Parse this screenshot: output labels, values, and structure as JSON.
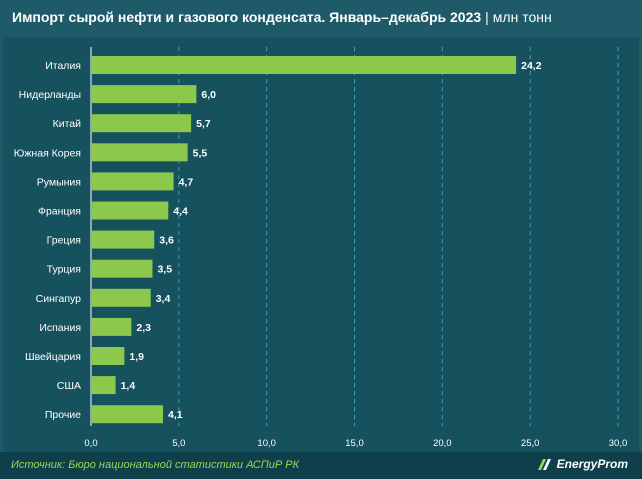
{
  "header": {
    "title_main": "Импорт сырой нефти и газового конденсата. Январь–декабрь 2023",
    "separator": "|",
    "unit": "млн тонн"
  },
  "footer": {
    "source": "Источник: Бюро национальной статистики АСПиР РК",
    "logo_text": "EnergyProm"
  },
  "colors": {
    "background": "#1f5a68",
    "panel": "#16515e",
    "bar": "#8cc84b",
    "grid": "#3fa3b3",
    "source_text": "#9bd65a"
  },
  "chart_data": {
    "type": "bar",
    "orientation": "horizontal",
    "categories": [
      "Италия",
      "Нидерланды",
      "Китай",
      "Южная Корея",
      "Румыния",
      "Франция",
      "Греция",
      "Турция",
      "Сингапур",
      "Испания",
      "Швейцария",
      "США",
      "Прочие"
    ],
    "values": [
      24.2,
      6.0,
      5.7,
      5.5,
      4.7,
      4.4,
      3.6,
      3.5,
      3.4,
      2.3,
      1.9,
      1.4,
      4.1
    ],
    "value_labels": [
      "24,2",
      "6,0",
      "5,7",
      "5,5",
      "4,7",
      "4,4",
      "3,6",
      "3,5",
      "3,4",
      "2,3",
      "1,9",
      "1,4",
      "4,1"
    ],
    "xlim": [
      0,
      30
    ],
    "ticks": [
      0,
      5,
      10,
      15,
      20,
      25,
      30
    ],
    "tick_labels": [
      "0,0",
      "5,0",
      "10,0",
      "15,0",
      "20,0",
      "25,0",
      "30,0"
    ],
    "grid": "vertical-dashed",
    "legend": "none"
  }
}
